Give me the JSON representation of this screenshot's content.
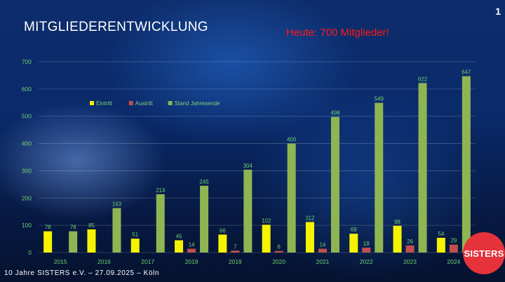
{
  "slide": {
    "title": "MITGLIEDERENTWICKLUNG",
    "headline": "Heute: 700 Mitglieder!",
    "page_number": "1",
    "footer": "10 Jahre SISTERS e.V. – 27.09.2025 – Köln",
    "logo": "SISTERS"
  },
  "colors": {
    "eintritt": "#f5f300",
    "austritt": "#c0504d",
    "stand": "#8fb553",
    "text_green": "#6fd06f",
    "headline": "#ff1a1a"
  },
  "chart_data": {
    "type": "bar",
    "categories": [
      "2015",
      "2016",
      "2017",
      "2018",
      "2019",
      "2020",
      "2021",
      "2022",
      "2023",
      "2024"
    ],
    "series": [
      {
        "name": "Eintritt",
        "values": [
          78,
          85,
          51,
          45,
          66,
          102,
          112,
          69,
          98,
          54
        ]
      },
      {
        "name": "Austritt",
        "values": [
          null,
          null,
          null,
          14,
          7,
          6,
          14,
          18,
          26,
          29
        ]
      },
      {
        "name": "Stand Jahresende",
        "values": [
          78,
          163,
          214,
          245,
          304,
          400,
          498,
          549,
          622,
          647
        ]
      }
    ],
    "ylim": [
      0,
      700
    ],
    "yticks": [
      0,
      100,
      200,
      300,
      400,
      500,
      600,
      700
    ],
    "grid": true,
    "legend": "upper-left"
  }
}
